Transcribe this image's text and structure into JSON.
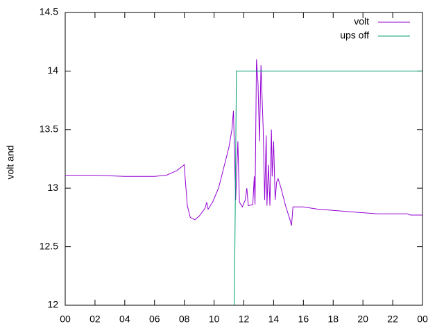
{
  "chart_data": {
    "type": "line",
    "ylabel": "volt and",
    "xlim": [
      0,
      24
    ],
    "xticks": [
      {
        "value": 0,
        "label": "00"
      },
      {
        "value": 2,
        "label": "02"
      },
      {
        "value": 4,
        "label": "04"
      },
      {
        "value": 6,
        "label": "06"
      },
      {
        "value": 8,
        "label": "08"
      },
      10,
      12,
      14,
      16,
      18,
      20,
      22,
      {
        "value": 24,
        "label": "00"
      }
    ],
    "ylim": [
      12,
      14.5
    ],
    "yticks": [
      12,
      12.5,
      13,
      13.5,
      14,
      14.5
    ],
    "legend": "top-right",
    "series": [
      {
        "name": "volt",
        "color": "#9400d3",
        "x": [
          0,
          2,
          4,
          6,
          6.8,
          7.5,
          8,
          8.05,
          8.2,
          8.4,
          8.7,
          9,
          9.4,
          9.5,
          9.6,
          9.9,
          10.3,
          10.6,
          11.0,
          11.2,
          11.3,
          11.35,
          11.45,
          11.6,
          11.7,
          11.9,
          12.1,
          12.2,
          12.3,
          12.6,
          12.7,
          12.75,
          12.85,
          12.95,
          13.05,
          13.15,
          13.3,
          13.4,
          13.5,
          13.55,
          13.65,
          13.75,
          13.85,
          13.9,
          14.0,
          14.1,
          14.2,
          14.3,
          14.5,
          14.8,
          15.1,
          15.2,
          15.3,
          16,
          17,
          18,
          19,
          20,
          21,
          22,
          23,
          23.2,
          24
        ],
        "values": [
          13.11,
          13.11,
          13.1,
          13.1,
          13.11,
          13.15,
          13.2,
          13.1,
          12.85,
          12.75,
          12.73,
          12.76,
          12.83,
          12.88,
          12.82,
          12.88,
          13.0,
          13.15,
          13.35,
          13.5,
          13.66,
          13.4,
          12.9,
          13.4,
          12.88,
          12.84,
          12.9,
          13.0,
          12.85,
          12.86,
          13.1,
          12.86,
          14.1,
          13.9,
          13.4,
          14.05,
          13.5,
          12.9,
          13.45,
          12.85,
          13.2,
          12.85,
          13.5,
          13.1,
          13.4,
          12.9,
          13.05,
          13.08,
          13.0,
          12.85,
          12.73,
          12.68,
          12.84,
          12.84,
          12.82,
          12.81,
          12.8,
          12.79,
          12.78,
          12.78,
          12.78,
          12.77,
          12.77
        ]
      },
      {
        "name": "ups off",
        "color": "#009e73",
        "x": [
          11.35,
          11.4,
          11.5,
          24
        ],
        "values": [
          12,
          12.5,
          14,
          14
        ]
      }
    ]
  }
}
